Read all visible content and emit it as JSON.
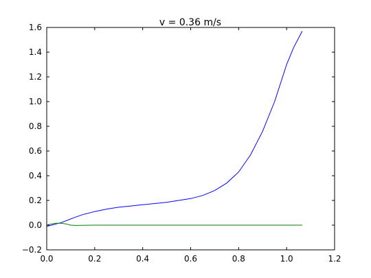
{
  "chart_data": {
    "type": "line",
    "title": "v = 0.36 m/s",
    "xlabel": "",
    "ylabel": "",
    "xlim": [
      0.0,
      1.2
    ],
    "ylim": [
      -0.2,
      1.6
    ],
    "x_ticks": [
      "0.0",
      "0.2",
      "0.4",
      "0.6",
      "0.8",
      "1.0",
      "1.2"
    ],
    "y_ticks": [
      "−0.2",
      "0.0",
      "0.2",
      "0.4",
      "0.6",
      "0.8",
      "1.0",
      "1.2",
      "1.4",
      "1.6"
    ],
    "grid": false,
    "legend": "none",
    "series": [
      {
        "color": "#0000ff",
        "x": [
          0.0,
          0.02,
          0.04,
          0.06,
          0.08,
          0.1,
          0.12,
          0.15,
          0.2,
          0.25,
          0.3,
          0.35,
          0.4,
          0.45,
          0.5,
          0.55,
          0.6,
          0.65,
          0.7,
          0.75,
          0.8,
          0.85,
          0.9,
          0.95,
          1.0,
          1.03,
          1.065
        ],
        "y": [
          -0.01,
          0.0,
          0.01,
          0.02,
          0.035,
          0.05,
          0.065,
          0.085,
          0.11,
          0.13,
          0.145,
          0.155,
          0.165,
          0.175,
          0.185,
          0.2,
          0.215,
          0.24,
          0.28,
          0.34,
          0.43,
          0.57,
          0.76,
          1.0,
          1.3,
          1.44,
          1.57
        ]
      },
      {
        "color": "#008000",
        "x": [
          0.0,
          0.02,
          0.04,
          0.06,
          0.08,
          0.1,
          0.12,
          0.2,
          0.4,
          0.6,
          0.8,
          1.0,
          1.065
        ],
        "y": [
          0.0,
          0.01,
          0.015,
          0.015,
          0.01,
          0.0,
          -0.002,
          0.0,
          0.0,
          0.0,
          0.0,
          0.0,
          0.0
        ]
      }
    ]
  }
}
